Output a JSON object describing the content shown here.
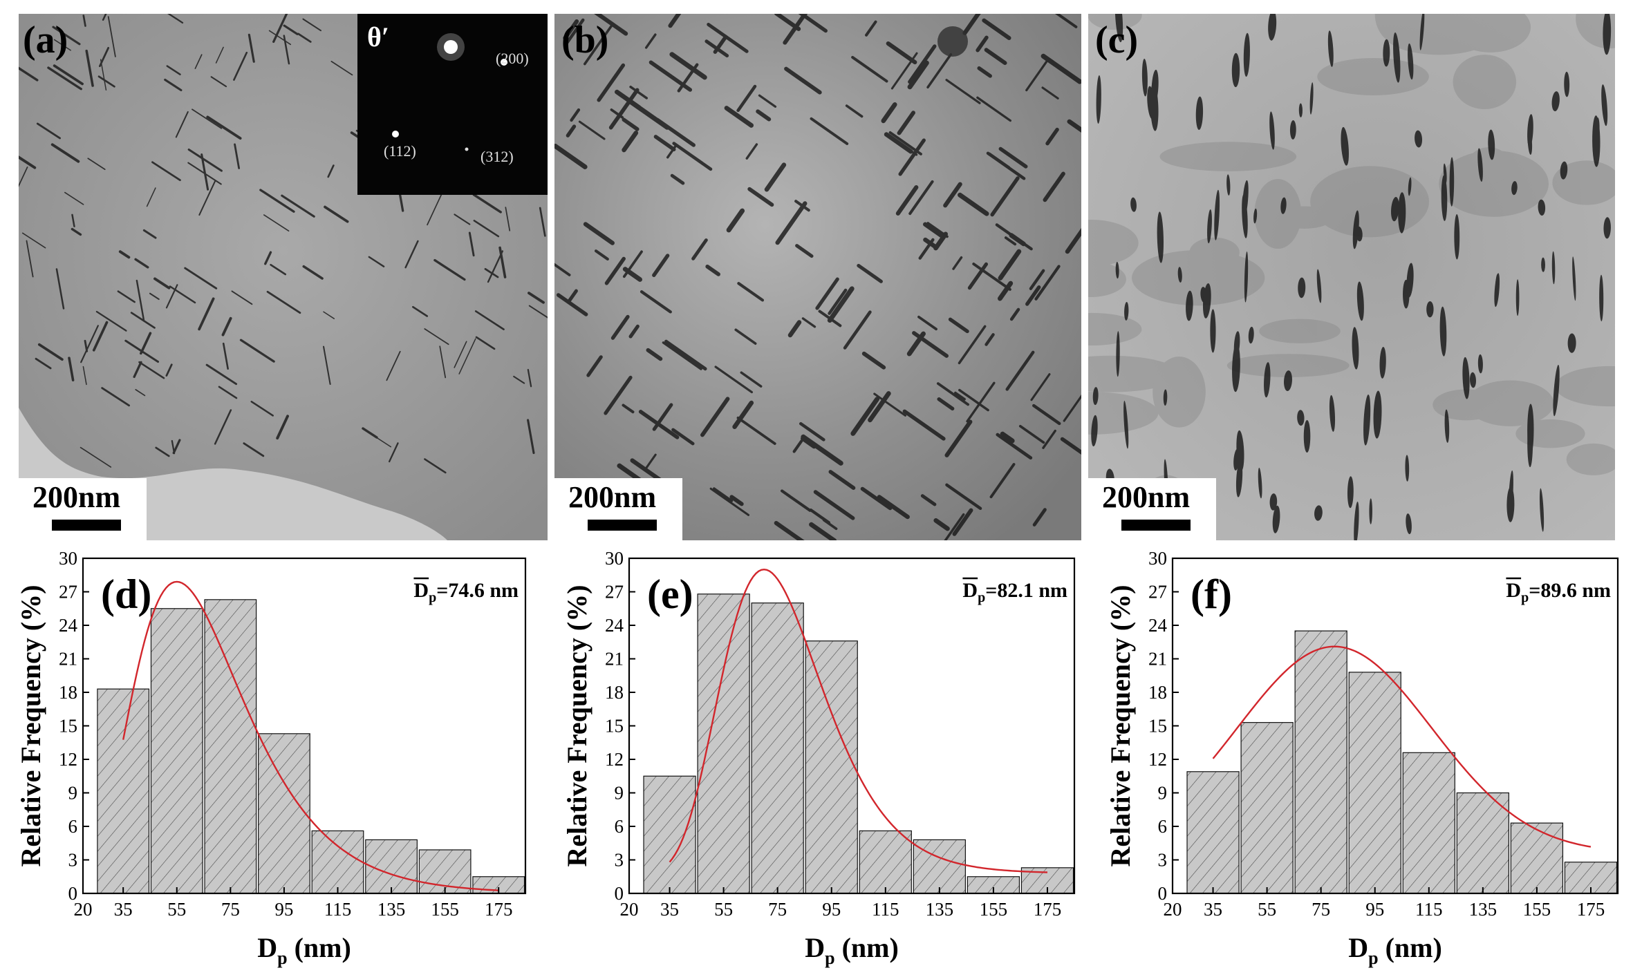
{
  "micrographs": [
    {
      "label": "(a)",
      "scale_text": "200nm",
      "inset": {
        "phase": "θ′",
        "spots": [
          "(200)",
          "(112)",
          "(312)"
        ]
      }
    },
    {
      "label": "(b)",
      "scale_text": "200nm"
    },
    {
      "label": "(c)",
      "scale_text": "200nm"
    }
  ],
  "colors": {
    "bar_fill": "#c8c8c8",
    "bar_hatch": "#4a4a4a",
    "fit_curve": "#d2262c",
    "axis": "#000000"
  },
  "chart_data": [
    {
      "type": "bar",
      "panel_label": "(d)",
      "annotation_symbol": "D",
      "annotation_sub": "p",
      "annotation_value": "=74.6 nm",
      "categories": [
        35,
        55,
        75,
        95,
        115,
        135,
        155,
        175
      ],
      "values": [
        18.3,
        25.5,
        26.3,
        14.3,
        5.6,
        4.8,
        3.9,
        1.5
      ],
      "fit_curve": {
        "type": "lognormal-like",
        "x_range": [
          35,
          175
        ],
        "peak_x": 55,
        "peak_y": 27.9
      },
      "xlabel_main": "D",
      "xlabel_sub": "p",
      "xlabel_unit": " (nm)",
      "ylabel": "Relative Frequency (%)",
      "xlim": [
        20,
        185
      ],
      "ylim": [
        0,
        30
      ],
      "xticks": [
        20,
        35,
        55,
        75,
        95,
        115,
        135,
        155,
        175
      ],
      "yticks": [
        0,
        3,
        6,
        9,
        12,
        15,
        18,
        21,
        24,
        27,
        30
      ]
    },
    {
      "type": "bar",
      "panel_label": "(e)",
      "annotation_symbol": "D",
      "annotation_sub": "p",
      "annotation_value": "=82.1 nm",
      "categories": [
        35,
        55,
        75,
        95,
        115,
        135,
        155,
        175
      ],
      "values": [
        10.5,
        26.8,
        26.0,
        22.6,
        5.6,
        4.8,
        1.5,
        2.3
      ],
      "fit_curve": {
        "type": "lognormal-like",
        "x_range": [
          35,
          175
        ],
        "peak_x": 70,
        "peak_y": 29.0
      },
      "xlabel_main": "D",
      "xlabel_sub": "p",
      "xlabel_unit": " (nm)",
      "ylabel": "Relative Frequency (%)",
      "xlim": [
        20,
        185
      ],
      "ylim": [
        0,
        30
      ],
      "xticks": [
        20,
        35,
        55,
        75,
        95,
        115,
        135,
        155,
        175
      ],
      "yticks": [
        0,
        3,
        6,
        9,
        12,
        15,
        18,
        21,
        24,
        27,
        30
      ]
    },
    {
      "type": "bar",
      "panel_label": "(f)",
      "annotation_symbol": "D",
      "annotation_sub": "p",
      "annotation_value": "=89.6 nm",
      "categories": [
        35,
        55,
        75,
        95,
        115,
        135,
        155,
        175
      ],
      "values": [
        10.9,
        15.3,
        23.5,
        19.8,
        12.6,
        9.0,
        6.3,
        2.8
      ],
      "fit_curve": {
        "type": "gaussian-like",
        "x_range": [
          35,
          175
        ],
        "peak_x": 80,
        "peak_y": 22.1
      },
      "xlabel_main": "D",
      "xlabel_sub": "p",
      "xlabel_unit": " (nm)",
      "ylabel": "Relative Frequency (%)",
      "xlim": [
        20,
        185
      ],
      "ylim": [
        0,
        30
      ],
      "xticks": [
        20,
        35,
        55,
        75,
        95,
        115,
        135,
        155,
        175
      ],
      "yticks": [
        0,
        3,
        6,
        9,
        12,
        15,
        18,
        21,
        24,
        27,
        30
      ]
    }
  ]
}
